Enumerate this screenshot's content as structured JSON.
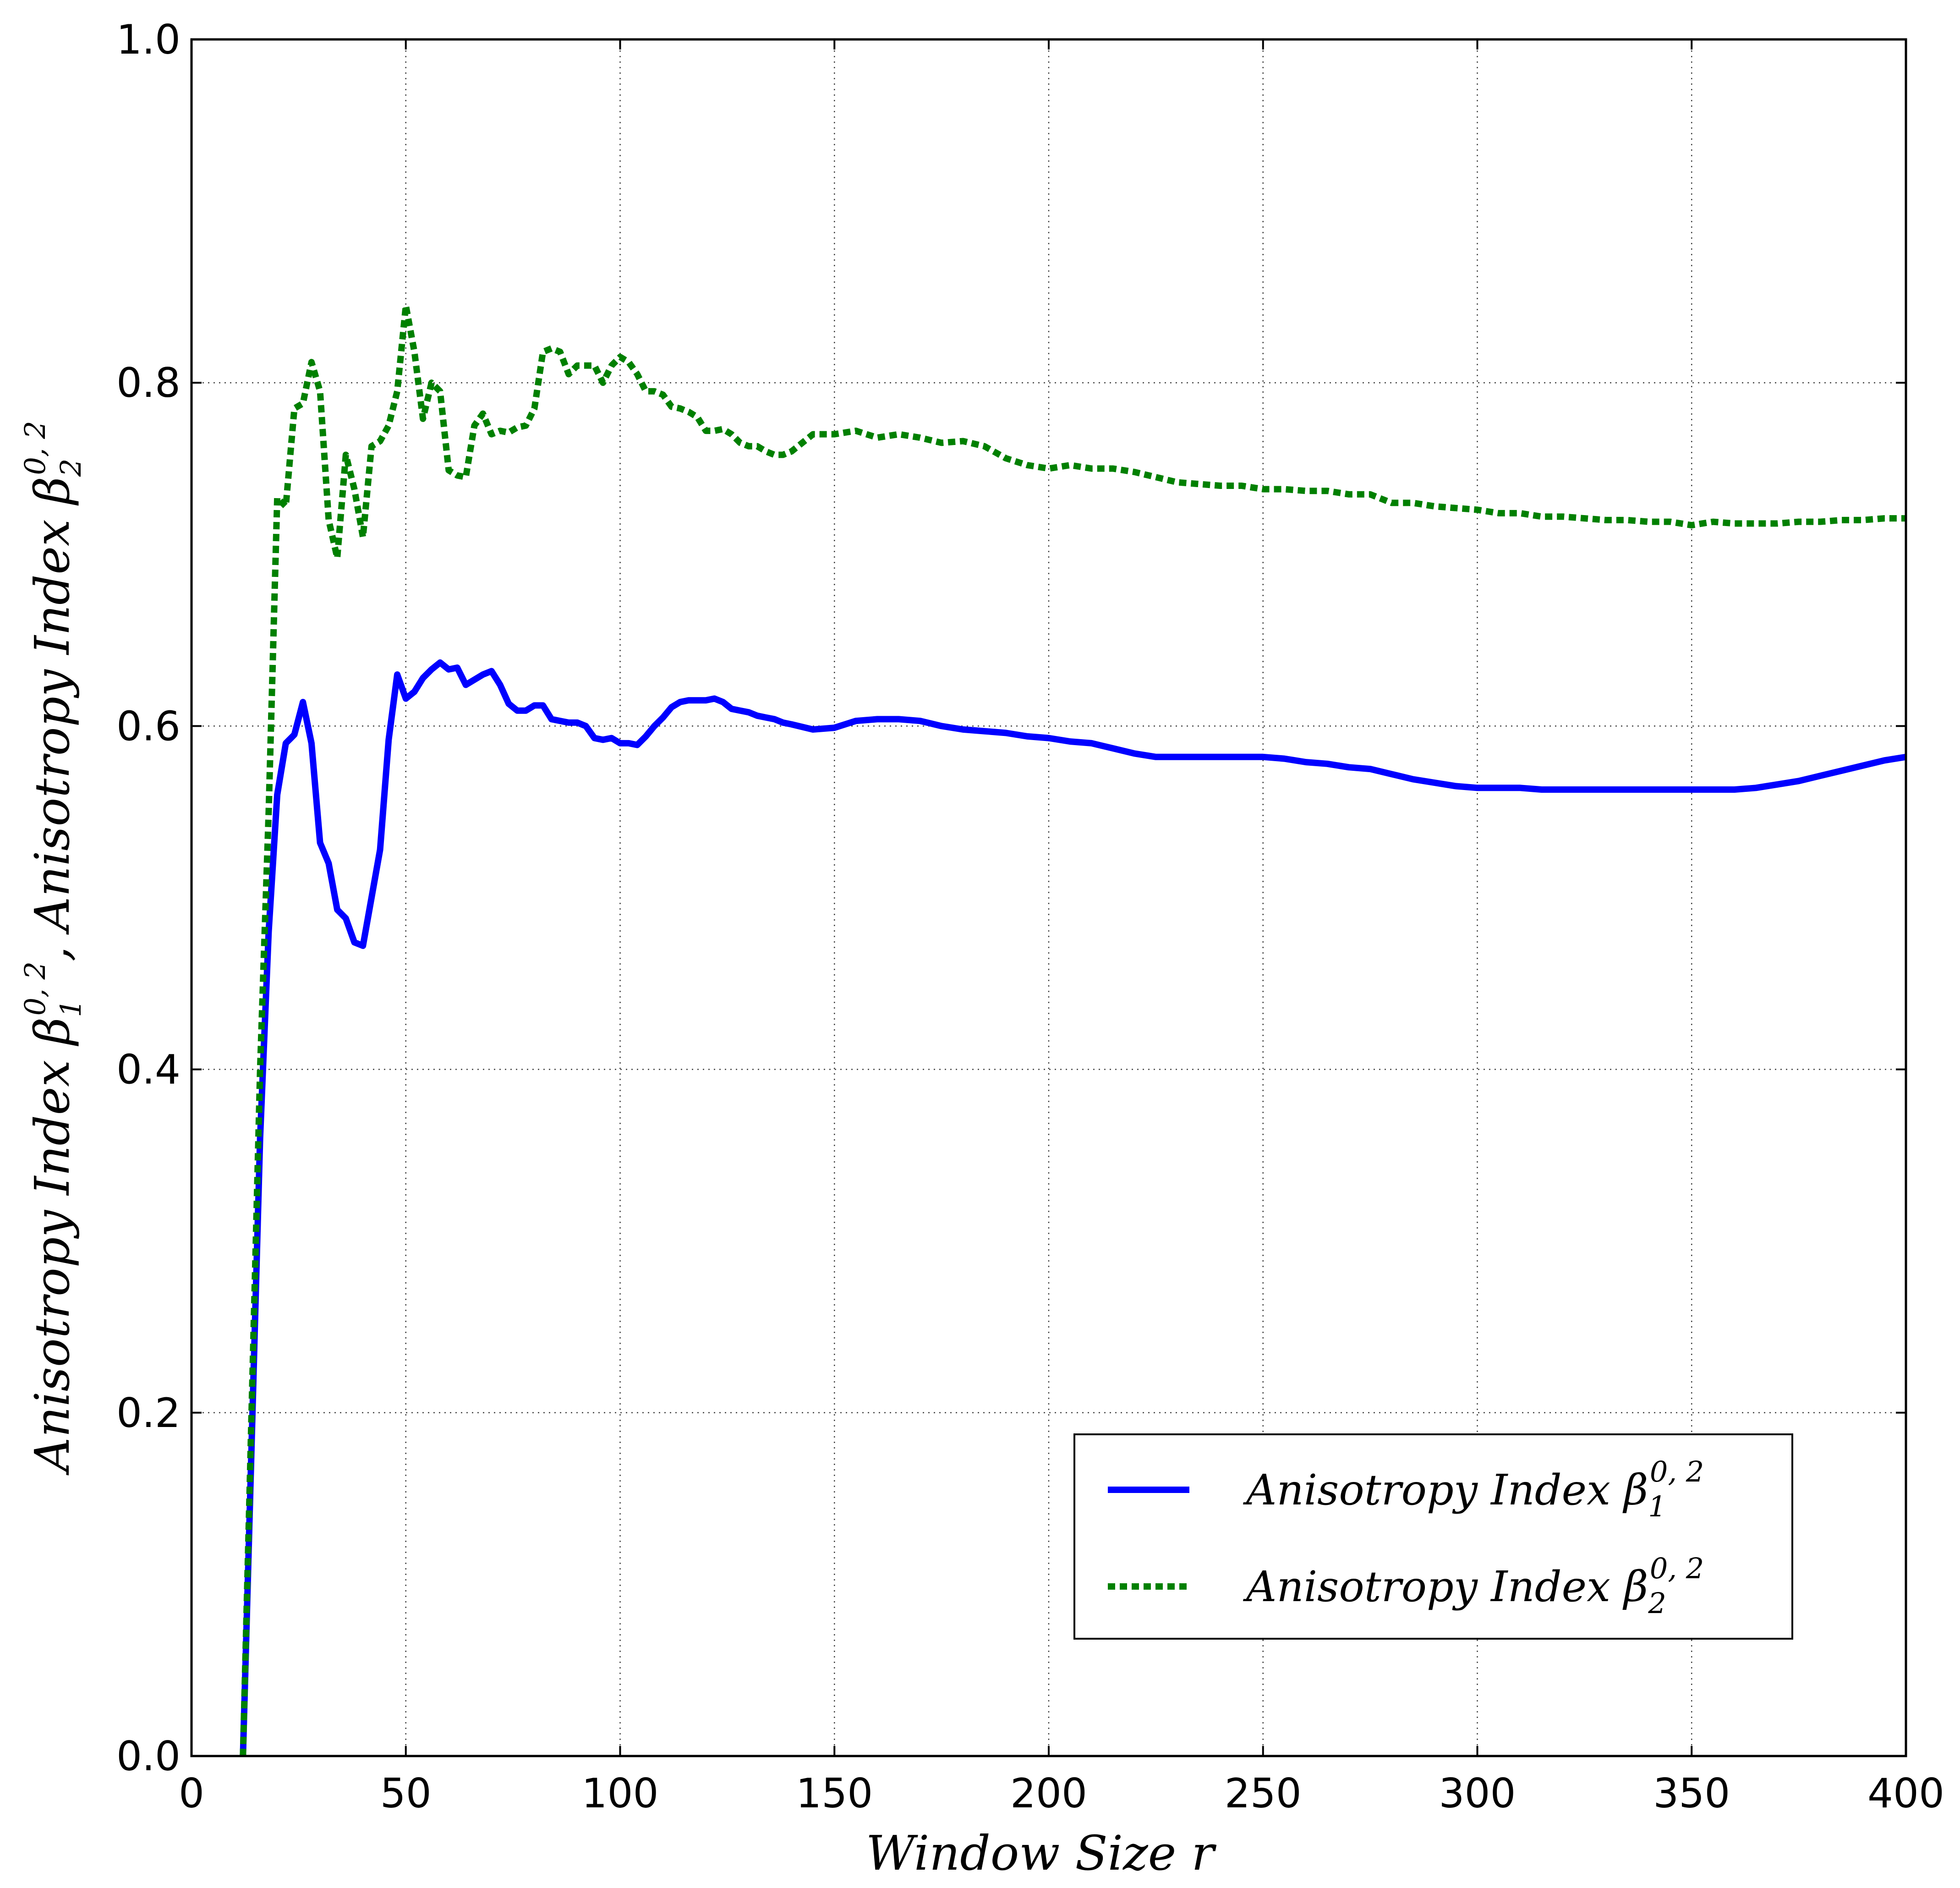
{
  "chart_data": {
    "type": "line",
    "xlabel": {
      "main": "Window Size ",
      "var": "r"
    },
    "ylabel": {
      "part1_text": "Anisotropy Index β",
      "part1_sub": "1",
      "part1_sup": "0, 2",
      "separator": ",  ",
      "part2_text": "Anisotropy Index β",
      "part2_sub": "2",
      "part2_sup": "0, 2"
    },
    "xlim": [
      0,
      400
    ],
    "ylim": [
      0.0,
      1.0
    ],
    "xticks": [
      0,
      50,
      100,
      150,
      200,
      250,
      300,
      350,
      400
    ],
    "xtick_labels": [
      "0",
      "50",
      "100",
      "150",
      "200",
      "250",
      "300",
      "350",
      "400"
    ],
    "yticks": [
      0.0,
      0.2,
      0.4,
      0.6,
      0.8,
      1.0
    ],
    "ytick_labels": [
      "0.0",
      "0.2",
      "0.4",
      "0.6",
      "0.8",
      "1.0"
    ],
    "grid": true,
    "legend_position": "lower-right",
    "series": [
      {
        "name": "Anisotropy Index β",
        "name_sub": "1",
        "name_sup": "0, 2",
        "color": "#0000ff",
        "style": "solid",
        "x": [
          12,
          14,
          16,
          18,
          20,
          22,
          24,
          26,
          28,
          30,
          32,
          34,
          36,
          38,
          40,
          42,
          44,
          46,
          48,
          50,
          52,
          54,
          56,
          58,
          60,
          62,
          64,
          66,
          68,
          70,
          72,
          74,
          76,
          78,
          80,
          82,
          84,
          86,
          88,
          90,
          92,
          94,
          96,
          98,
          100,
          102,
          104,
          106,
          108,
          110,
          112,
          114,
          116,
          118,
          120,
          122,
          124,
          126,
          128,
          130,
          132,
          134,
          136,
          138,
          140,
          145,
          150,
          155,
          160,
          165,
          170,
          175,
          180,
          185,
          190,
          195,
          200,
          205,
          210,
          215,
          220,
          225,
          230,
          235,
          240,
          245,
          250,
          255,
          260,
          265,
          270,
          275,
          280,
          285,
          290,
          295,
          300,
          305,
          310,
          315,
          320,
          325,
          330,
          335,
          340,
          345,
          350,
          355,
          360,
          365,
          370,
          375,
          380,
          385,
          390,
          395,
          400
        ],
        "y": [
          0.0,
          0.18,
          0.36,
          0.48,
          0.56,
          0.59,
          0.595,
          0.614,
          0.59,
          0.532,
          0.52,
          0.493,
          0.488,
          0.474,
          0.472,
          0.5,
          0.528,
          0.592,
          0.63,
          0.616,
          0.62,
          0.628,
          0.633,
          0.637,
          0.633,
          0.634,
          0.624,
          0.627,
          0.63,
          0.632,
          0.624,
          0.613,
          0.609,
          0.609,
          0.612,
          0.612,
          0.604,
          0.603,
          0.602,
          0.602,
          0.6,
          0.593,
          0.592,
          0.593,
          0.59,
          0.59,
          0.589,
          0.594,
          0.6,
          0.605,
          0.611,
          0.614,
          0.615,
          0.615,
          0.615,
          0.616,
          0.614,
          0.61,
          0.609,
          0.608,
          0.606,
          0.605,
          0.604,
          0.602,
          0.601,
          0.598,
          0.599,
          0.603,
          0.604,
          0.604,
          0.603,
          0.6,
          0.598,
          0.597,
          0.596,
          0.594,
          0.593,
          0.591,
          0.59,
          0.587,
          0.584,
          0.582,
          0.582,
          0.582,
          0.582,
          0.582,
          0.582,
          0.581,
          0.579,
          0.578,
          0.576,
          0.575,
          0.572,
          0.569,
          0.567,
          0.565,
          0.564,
          0.564,
          0.564,
          0.563,
          0.563,
          0.563,
          0.563,
          0.563,
          0.563,
          0.563,
          0.563,
          0.563,
          0.563,
          0.564,
          0.566,
          0.568,
          0.571,
          0.574,
          0.577,
          0.58,
          0.582
        ]
      },
      {
        "name": "Anisotropy Index β",
        "name_sub": "2",
        "name_sup": "0, 2",
        "color": "#008000",
        "style": "dotted",
        "x": [
          12,
          14,
          16,
          18,
          20,
          22,
          24,
          26,
          28,
          30,
          32,
          34,
          36,
          38,
          40,
          42,
          44,
          46,
          48,
          50,
          52,
          54,
          56,
          58,
          60,
          62,
          64,
          66,
          68,
          70,
          72,
          74,
          76,
          78,
          80,
          82,
          84,
          86,
          88,
          90,
          92,
          94,
          96,
          98,
          100,
          102,
          104,
          106,
          108,
          110,
          112,
          114,
          116,
          118,
          120,
          122,
          124,
          126,
          128,
          130,
          132,
          134,
          136,
          138,
          140,
          145,
          150,
          155,
          160,
          165,
          170,
          175,
          180,
          185,
          190,
          195,
          200,
          205,
          210,
          215,
          220,
          225,
          230,
          235,
          240,
          245,
          250,
          255,
          260,
          265,
          270,
          275,
          280,
          285,
          290,
          295,
          300,
          305,
          310,
          315,
          320,
          325,
          330,
          335,
          340,
          345,
          350,
          355,
          360,
          365,
          370,
          375,
          380,
          385,
          390,
          395,
          400
        ],
        "y": [
          0.0,
          0.2,
          0.4,
          0.55,
          0.733,
          0.728,
          0.785,
          0.788,
          0.812,
          0.795,
          0.72,
          0.698,
          0.758,
          0.738,
          0.71,
          0.763,
          0.766,
          0.775,
          0.795,
          0.845,
          0.818,
          0.779,
          0.8,
          0.795,
          0.749,
          0.746,
          0.745,
          0.775,
          0.782,
          0.77,
          0.772,
          0.771,
          0.774,
          0.775,
          0.785,
          0.818,
          0.82,
          0.818,
          0.805,
          0.81,
          0.81,
          0.81,
          0.8,
          0.81,
          0.815,
          0.812,
          0.805,
          0.795,
          0.795,
          0.793,
          0.786,
          0.785,
          0.783,
          0.78,
          0.772,
          0.772,
          0.773,
          0.77,
          0.765,
          0.763,
          0.763,
          0.76,
          0.758,
          0.758,
          0.76,
          0.77,
          0.77,
          0.772,
          0.768,
          0.77,
          0.768,
          0.765,
          0.766,
          0.763,
          0.756,
          0.752,
          0.75,
          0.752,
          0.75,
          0.75,
          0.748,
          0.745,
          0.742,
          0.741,
          0.74,
          0.74,
          0.738,
          0.738,
          0.737,
          0.737,
          0.735,
          0.735,
          0.73,
          0.73,
          0.728,
          0.727,
          0.726,
          0.724,
          0.724,
          0.722,
          0.722,
          0.721,
          0.72,
          0.72,
          0.719,
          0.719,
          0.717,
          0.719,
          0.718,
          0.718,
          0.718,
          0.719,
          0.719,
          0.72,
          0.72,
          0.721,
          0.721
        ]
      }
    ]
  }
}
